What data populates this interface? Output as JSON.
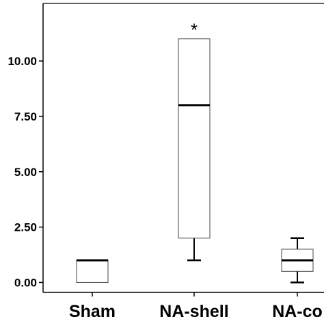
{
  "chart_data": {
    "type": "box",
    "categories": [
      "Sham",
      "NA-shell",
      "NA-co"
    ],
    "ylim": [
      -0.45,
      12.6
    ],
    "yticks": [
      0.0,
      2.5,
      5.0,
      7.5,
      10.0
    ],
    "ytick_labels": [
      "0.00",
      "2.50",
      "5.00",
      "7.50",
      "10.00"
    ],
    "boxes": [
      {
        "category": "Sham",
        "whisker_low": 0.0,
        "q1": 0.0,
        "median": 1.0,
        "q3": 1.0,
        "whisker_high": 1.0,
        "marker": ""
      },
      {
        "category": "NA-shell",
        "whisker_low": 1.0,
        "q1": 2.0,
        "median": 8.0,
        "q3": 11.0,
        "whisker_high": 11.0,
        "marker": "*"
      },
      {
        "category": "NA-co",
        "whisker_low": 0.0,
        "q1": 0.5,
        "median": 1.0,
        "q3": 1.5,
        "whisker_high": 2.0,
        "marker": ""
      }
    ],
    "title": "",
    "xlabel": "",
    "ylabel": "",
    "grid": false,
    "colors": {
      "box_fill": "#ffffff",
      "line": "#000000",
      "box_edge": "#444444"
    }
  }
}
